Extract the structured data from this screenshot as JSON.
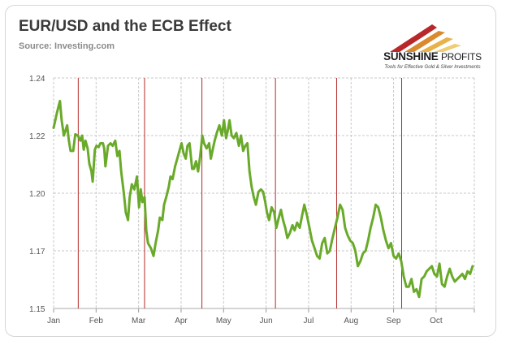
{
  "header": {
    "title": "EUR/USD and the ECB Effect",
    "source": "Source: Investing.com"
  },
  "logo": {
    "name_bold": "SUNSHINE",
    "name_light": "PROFITS",
    "tagline": "Tools for Effective Gold & Silver Investments"
  },
  "colors": {
    "line": "#6aaa2a",
    "event_line": "#b52a2a",
    "grid": "#c8c8c8",
    "background": "#ffffff"
  },
  "chart_data": {
    "type": "line",
    "title": "EUR/USD and the ECB Effect",
    "xlabel": "",
    "ylabel": "",
    "ylim": [
      1.15,
      1.24
    ],
    "xlim": [
      0,
      9.9
    ],
    "x_tick_labels": [
      "Jan",
      "Feb",
      "Mar",
      "Apr",
      "May",
      "Jun",
      "Jul",
      "Aug",
      "Sep",
      "Oct"
    ],
    "y_tick_labels": [
      "1.15",
      "1.17",
      "1.20",
      "1.22",
      "1.24"
    ],
    "y_tick_values": [
      1.15,
      1.1725,
      1.195,
      1.2175,
      1.24
    ],
    "grid": true,
    "vertical_event_lines_month_index": [
      0.58,
      2.14,
      3.49,
      5.22,
      6.66,
      8.19
    ],
    "series": [
      {
        "values_month_index": [
          0.0,
          0.08,
          0.15,
          0.19,
          0.24,
          0.32,
          0.36,
          0.4,
          0.46,
          0.51,
          0.57,
          0.63,
          0.67,
          0.71,
          0.75,
          0.8,
          0.84,
          0.89,
          0.92,
          0.97,
          1.01,
          1.06,
          1.1,
          1.16,
          1.19,
          1.22,
          1.28,
          1.34,
          1.39,
          1.45,
          1.5,
          1.55,
          1.59,
          1.65,
          1.7,
          1.75,
          1.79,
          1.84,
          1.9,
          1.96,
          2.01,
          2.05,
          2.09,
          2.14,
          2.18,
          2.22,
          2.29,
          2.35,
          2.4,
          2.46,
          2.5,
          2.56,
          2.6,
          2.65,
          2.71,
          2.75,
          2.8,
          2.86,
          2.91,
          2.96,
          3.01,
          3.06,
          3.11,
          3.15,
          3.2,
          3.26,
          3.3,
          3.35,
          3.4,
          3.45,
          3.5,
          3.54,
          3.6,
          3.66,
          3.7,
          3.75,
          3.79,
          3.84,
          3.9,
          3.96,
          4.01,
          4.06,
          4.1,
          4.14,
          4.19,
          4.24,
          4.3,
          4.36,
          4.41,
          4.46,
          4.51,
          4.56,
          4.61,
          4.66,
          4.71,
          4.76,
          4.82,
          4.88,
          4.93,
          4.98,
          5.02,
          5.07,
          5.13,
          5.19,
          5.24,
          5.3,
          5.35,
          5.4,
          5.45,
          5.5,
          5.56,
          5.62,
          5.67,
          5.73,
          5.79,
          5.85,
          5.9,
          5.96,
          6.02,
          6.08,
          6.14,
          6.2,
          6.26,
          6.32,
          6.38,
          6.44,
          6.5,
          6.55,
          6.62,
          6.68,
          6.74,
          6.8,
          6.86,
          6.92,
          6.98,
          7.04,
          7.1,
          7.16,
          7.22,
          7.28,
          7.34,
          7.4,
          7.46,
          7.52,
          7.58,
          7.64,
          7.7,
          7.76,
          7.82,
          7.88,
          7.94,
          8.0,
          8.06,
          8.12,
          8.18,
          8.24,
          8.3,
          8.36,
          8.42,
          8.48,
          8.54,
          8.6,
          8.66,
          8.72,
          8.78,
          8.84,
          8.9,
          8.96,
          9.02,
          9.08,
          9.14,
          9.2,
          9.26,
          9.32,
          9.38,
          9.44,
          9.5,
          9.56,
          9.62,
          9.68,
          9.74,
          9.8,
          9.86
        ],
        "values": [
          1.2205,
          1.2265,
          1.231,
          1.2235,
          1.2175,
          1.2215,
          1.2155,
          1.2115,
          1.2115,
          1.218,
          1.2175,
          1.2155,
          1.2175,
          1.212,
          1.2155,
          1.2125,
          1.2065,
          1.2035,
          1.1995,
          1.212,
          1.2135,
          1.213,
          1.2145,
          1.2145,
          1.2125,
          1.2055,
          1.2135,
          1.2145,
          1.2135,
          1.2155,
          1.2095,
          1.2115,
          1.2035,
          1.1955,
          1.1875,
          1.1845,
          1.1935,
          1.1985,
          1.1965,
          1.2015,
          1.1895,
          1.1965,
          1.1915,
          1.1935,
          1.1805,
          1.1755,
          1.1735,
          1.1705,
          1.1755,
          1.1805,
          1.1855,
          1.1845,
          1.1905,
          1.1935,
          1.1975,
          1.2015,
          1.2005,
          1.2055,
          1.2085,
          1.2115,
          1.2145,
          1.2105,
          1.2085,
          1.2135,
          1.2145,
          1.2045,
          1.2045,
          1.2075,
          1.2035,
          1.2095,
          1.2175,
          1.2145,
          1.2125,
          1.2145,
          1.2085,
          1.2125,
          1.2155,
          1.2185,
          1.2215,
          1.2175,
          1.2235,
          1.2165,
          1.2195,
          1.2235,
          1.2175,
          1.2165,
          1.2185,
          1.2135,
          1.2175,
          1.2115,
          1.2135,
          1.2145,
          1.2035,
          1.1975,
          1.1935,
          1.1905,
          1.1955,
          1.1965,
          1.1955,
          1.1915,
          1.1875,
          1.1845,
          1.1895,
          1.1875,
          1.1815,
          1.1855,
          1.1885,
          1.1845,
          1.1815,
          1.1775,
          1.1795,
          1.1825,
          1.1805,
          1.1835,
          1.1815,
          1.1865,
          1.1905,
          1.1865,
          1.1815,
          1.1765,
          1.1735,
          1.1705,
          1.1695,
          1.1755,
          1.1775,
          1.1715,
          1.1725,
          1.1765,
          1.1815,
          1.1855,
          1.1905,
          1.1885,
          1.1815,
          1.1785,
          1.1765,
          1.1755,
          1.1725,
          1.1665,
          1.1685,
          1.1715,
          1.1725,
          1.1765,
          1.1815,
          1.1855,
          1.1905,
          1.1895,
          1.1855,
          1.1805,
          1.1765,
          1.1735,
          1.1755,
          1.1705,
          1.1695,
          1.1715,
          1.1685,
          1.1625,
          1.1585,
          1.1585,
          1.1615,
          1.1565,
          1.1575,
          1.1545,
          1.1615,
          1.1625,
          1.1645,
          1.1655,
          1.1665,
          1.1635,
          1.1625,
          1.1675,
          1.1595,
          1.1585,
          1.1625,
          1.1655,
          1.1625,
          1.1605,
          1.1615,
          1.1625,
          1.1635,
          1.1615,
          1.1645,
          1.1635,
          1.1665
        ]
      }
    ]
  }
}
